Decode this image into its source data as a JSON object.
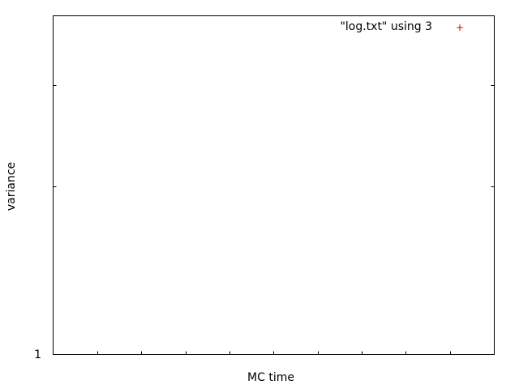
{
  "chart_data": {
    "type": "scatter",
    "title": "",
    "xlabel": "MC time",
    "ylabel": "variance",
    "y_tick_labels": [
      "1"
    ],
    "y_scale": "log",
    "grid": false,
    "legend_position": "top-right",
    "series": [
      {
        "name": "\"log.txt\" using 3",
        "marker": "+",
        "color": "#cc0000",
        "points": []
      }
    ]
  }
}
